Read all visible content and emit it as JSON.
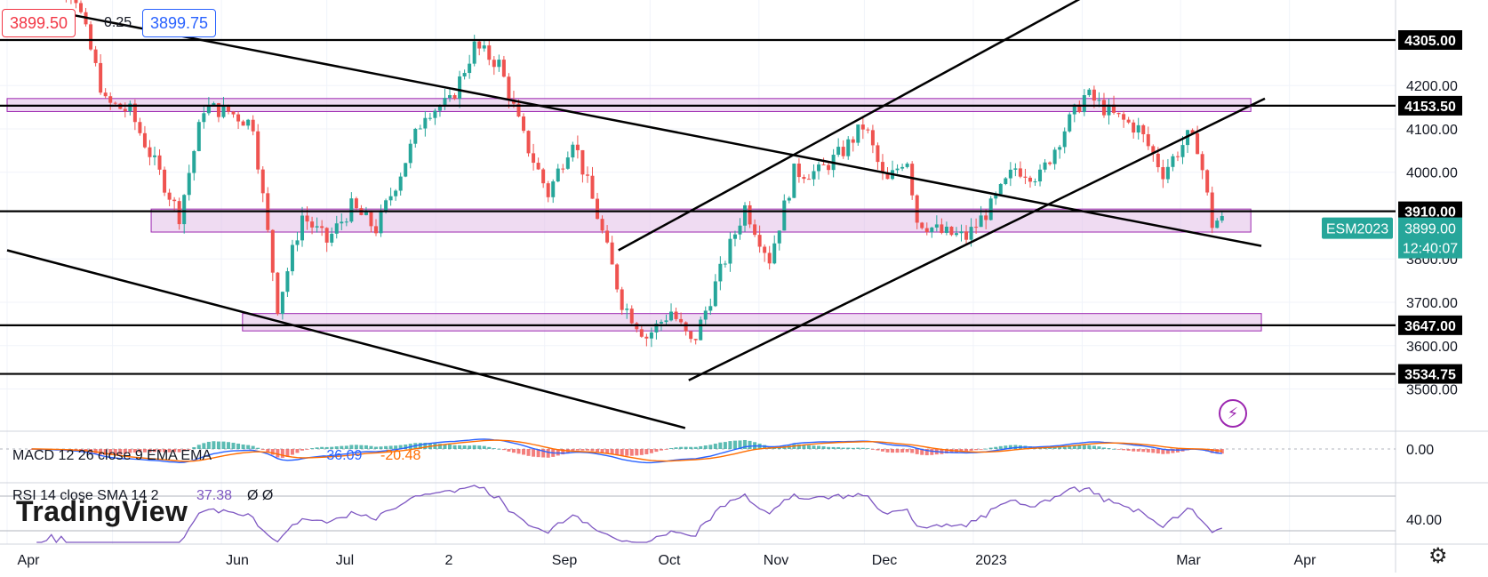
{
  "header": {
    "bid": "3899.50",
    "spread": "0.25",
    "ask": "3899.75"
  },
  "chart_data": {
    "type": "candlestick",
    "symbol": "ESM2023",
    "last_price": "3899.00",
    "countdown": "12:40:07",
    "y_ticks": [
      "3500.00",
      "3600.00",
      "3700.00",
      "3800.00",
      "4000.00",
      "4100.00",
      "4200.00"
    ],
    "x_ticks": [
      "Apr",
      "Jun",
      "Jul",
      "2",
      "Sep",
      "Oct",
      "Nov",
      "Dec",
      "2023",
      "Mar",
      "Apr"
    ],
    "horizontal_levels": [
      {
        "value": 4305.0,
        "label": "4305.00"
      },
      {
        "value": 4153.5,
        "label": "4153.50"
      },
      {
        "value": 3910.0,
        "label": "3910.00"
      },
      {
        "value": 3647.0,
        "label": "3647.00"
      },
      {
        "value": 3534.75,
        "label": "3534.75"
      }
    ],
    "price_path": [
      [
        "2022-04-08",
        4480
      ],
      [
        "2022-04-20",
        4420
      ],
      [
        "2022-04-29",
        4160
      ],
      [
        "2022-05-06",
        4140
      ],
      [
        "2022-05-13",
        4020
      ],
      [
        "2022-05-20",
        3900
      ],
      [
        "2022-05-27",
        4150
      ],
      [
        "2022-06-03",
        4140
      ],
      [
        "2022-06-10",
        4110
      ],
      [
        "2022-06-17",
        3690
      ],
      [
        "2022-06-24",
        3900
      ],
      [
        "2022-07-01",
        3840
      ],
      [
        "2022-07-08",
        3920
      ],
      [
        "2022-07-15",
        3870
      ],
      [
        "2022-07-22",
        4000
      ],
      [
        "2022-07-29",
        4140
      ],
      [
        "2022-08-05",
        4160
      ],
      [
        "2022-08-12",
        4290
      ],
      [
        "2022-08-19",
        4250
      ],
      [
        "2022-08-26",
        4080
      ],
      [
        "2022-09-02",
        3950
      ],
      [
        "2022-09-09",
        4080
      ],
      [
        "2022-09-16",
        3900
      ],
      [
        "2022-09-23",
        3700
      ],
      [
        "2022-09-30",
        3620
      ],
      [
        "2022-10-07",
        3680
      ],
      [
        "2022-10-13",
        3600
      ],
      [
        "2022-10-21",
        3770
      ],
      [
        "2022-10-28",
        3920
      ],
      [
        "2022-11-04",
        3800
      ],
      [
        "2022-11-11",
        4000
      ],
      [
        "2022-11-18",
        4000
      ],
      [
        "2022-11-25",
        4050
      ],
      [
        "2022-12-01",
        4110
      ],
      [
        "2022-12-07",
        3970
      ],
      [
        "2022-12-13",
        4040
      ],
      [
        "2022-12-16",
        3890
      ],
      [
        "2022-12-23",
        3860
      ],
      [
        "2022-12-30",
        3850
      ],
      [
        "2023-01-06",
        3920
      ],
      [
        "2023-01-13",
        4010
      ],
      [
        "2023-01-20",
        3990
      ],
      [
        "2023-01-27",
        4100
      ],
      [
        "2023-02-02",
        4180
      ],
      [
        "2023-02-10",
        4130
      ],
      [
        "2023-02-17",
        4100
      ],
      [
        "2023-02-24",
        4000
      ],
      [
        "2023-03-03",
        4080
      ],
      [
        "2023-03-06",
        4060
      ],
      [
        "2023-03-10",
        3880
      ],
      [
        "2023-03-13",
        3899
      ]
    ],
    "trendlines": [
      {
        "from": [
          "2022-04-15",
          4370
        ],
        "to": [
          "2022-12-20",
          3940
        ],
        "extend_to": [
          "2023-03-24",
          3830
        ]
      },
      {
        "from": [
          "2022-04-01",
          3820
        ],
        "to": [
          "2022-10-11",
          3410
        ]
      },
      {
        "from": [
          "2022-09-22",
          3820
        ],
        "to": [
          "2023-02-14",
          4460
        ]
      },
      {
        "from": [
          "2022-10-12",
          3520
        ],
        "to": [
          "2023-03-25",
          4170
        ]
      }
    ],
    "zones": [
      {
        "from": "2022-04-01",
        "to": "2023-03-21",
        "y0": 4140,
        "y1": 4170
      },
      {
        "from": "2022-05-12",
        "to": "2023-03-21",
        "y0": 3862,
        "y1": 3915
      },
      {
        "from": "2022-06-07",
        "to": "2023-03-24",
        "y0": 3634,
        "y1": 3674
      }
    ],
    "macd": {
      "label": "MACD 12 26 close 9 EMA EMA",
      "hist": "-36.09",
      "signal": "-20.48",
      "tick": "0.00"
    },
    "rsi": {
      "label": "RSI 14 close SMA 14 2",
      "value": "37.38",
      "extra": "Ø Ø",
      "tick": "40.00"
    },
    "colors": {
      "up": "#26a69a",
      "down": "#ef5350",
      "zone_fill": "#e1bee7",
      "zone_edge": "#9c27b0",
      "macd": "#2962ff",
      "signal": "#ff6d00",
      "rsi": "#7e57c2",
      "ask": "#2962ff",
      "bid": "#f23645"
    }
  },
  "watermark": "TradingView",
  "icons": {
    "flash": "lightning-icon",
    "settings": "gear-icon"
  }
}
